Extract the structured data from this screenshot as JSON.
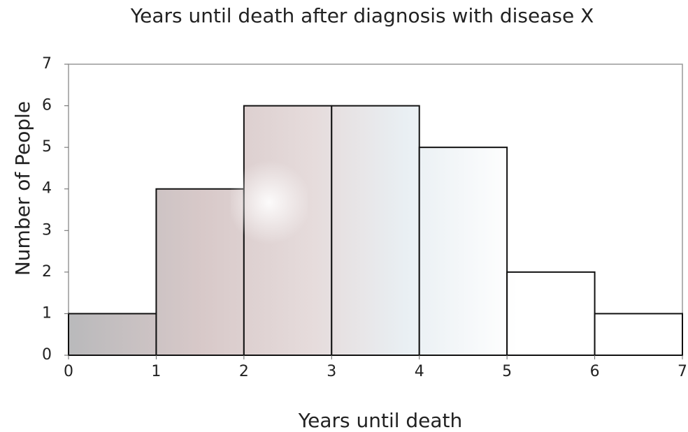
{
  "chart_data": {
    "type": "histogram",
    "title": "Years until death after diagnosis with disease X",
    "x_label": "Years until death",
    "y_label": "Number of People",
    "bins": [
      0,
      1,
      2,
      3,
      4,
      5,
      6,
      7
    ],
    "values": [
      1,
      4,
      6,
      6,
      5,
      2,
      1
    ],
    "xlim": [
      0,
      7
    ],
    "xticks": [
      0,
      1,
      2,
      3,
      4,
      5,
      6,
      7
    ],
    "ylim": [
      0,
      7
    ],
    "yticks": [
      0,
      1,
      2,
      3,
      4,
      5,
      6,
      7
    ]
  }
}
